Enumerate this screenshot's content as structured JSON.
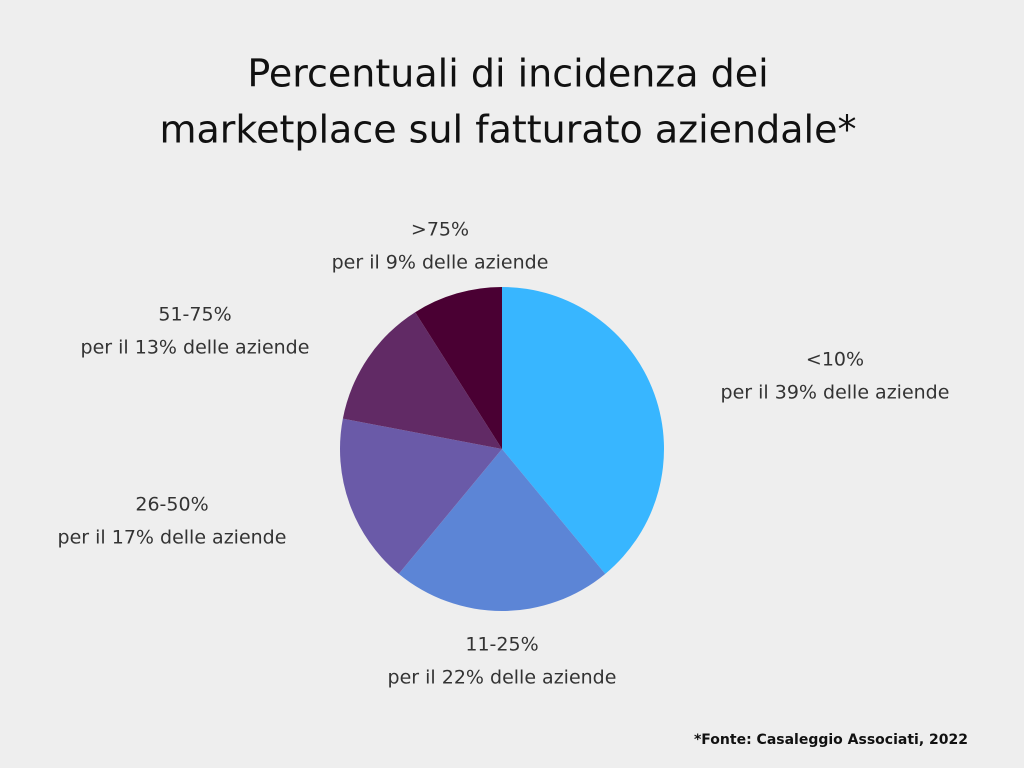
{
  "chart_data": {
    "type": "pie",
    "title": [
      "Percentuali di incidenza dei",
      "marketplace sul fatturato aziendale*"
    ],
    "categories": [
      "<10%",
      "11-25%",
      "26-50%",
      "51-75%",
      ">75%"
    ],
    "values": [
      39,
      22,
      17,
      13,
      9
    ],
    "value_labels": [
      "per il 39% delle aziende",
      "per il 22% delle aziende",
      "per il 17% delle aziende",
      "per il 13% delle aziende",
      "per il 9% delle aziende"
    ],
    "colors": [
      "#38b6ff",
      "#5c85d6",
      "#6a5aa8",
      "#612a65",
      "#4a0033"
    ],
    "source": "*Fonte: Casaleggio Associati, 2022"
  }
}
